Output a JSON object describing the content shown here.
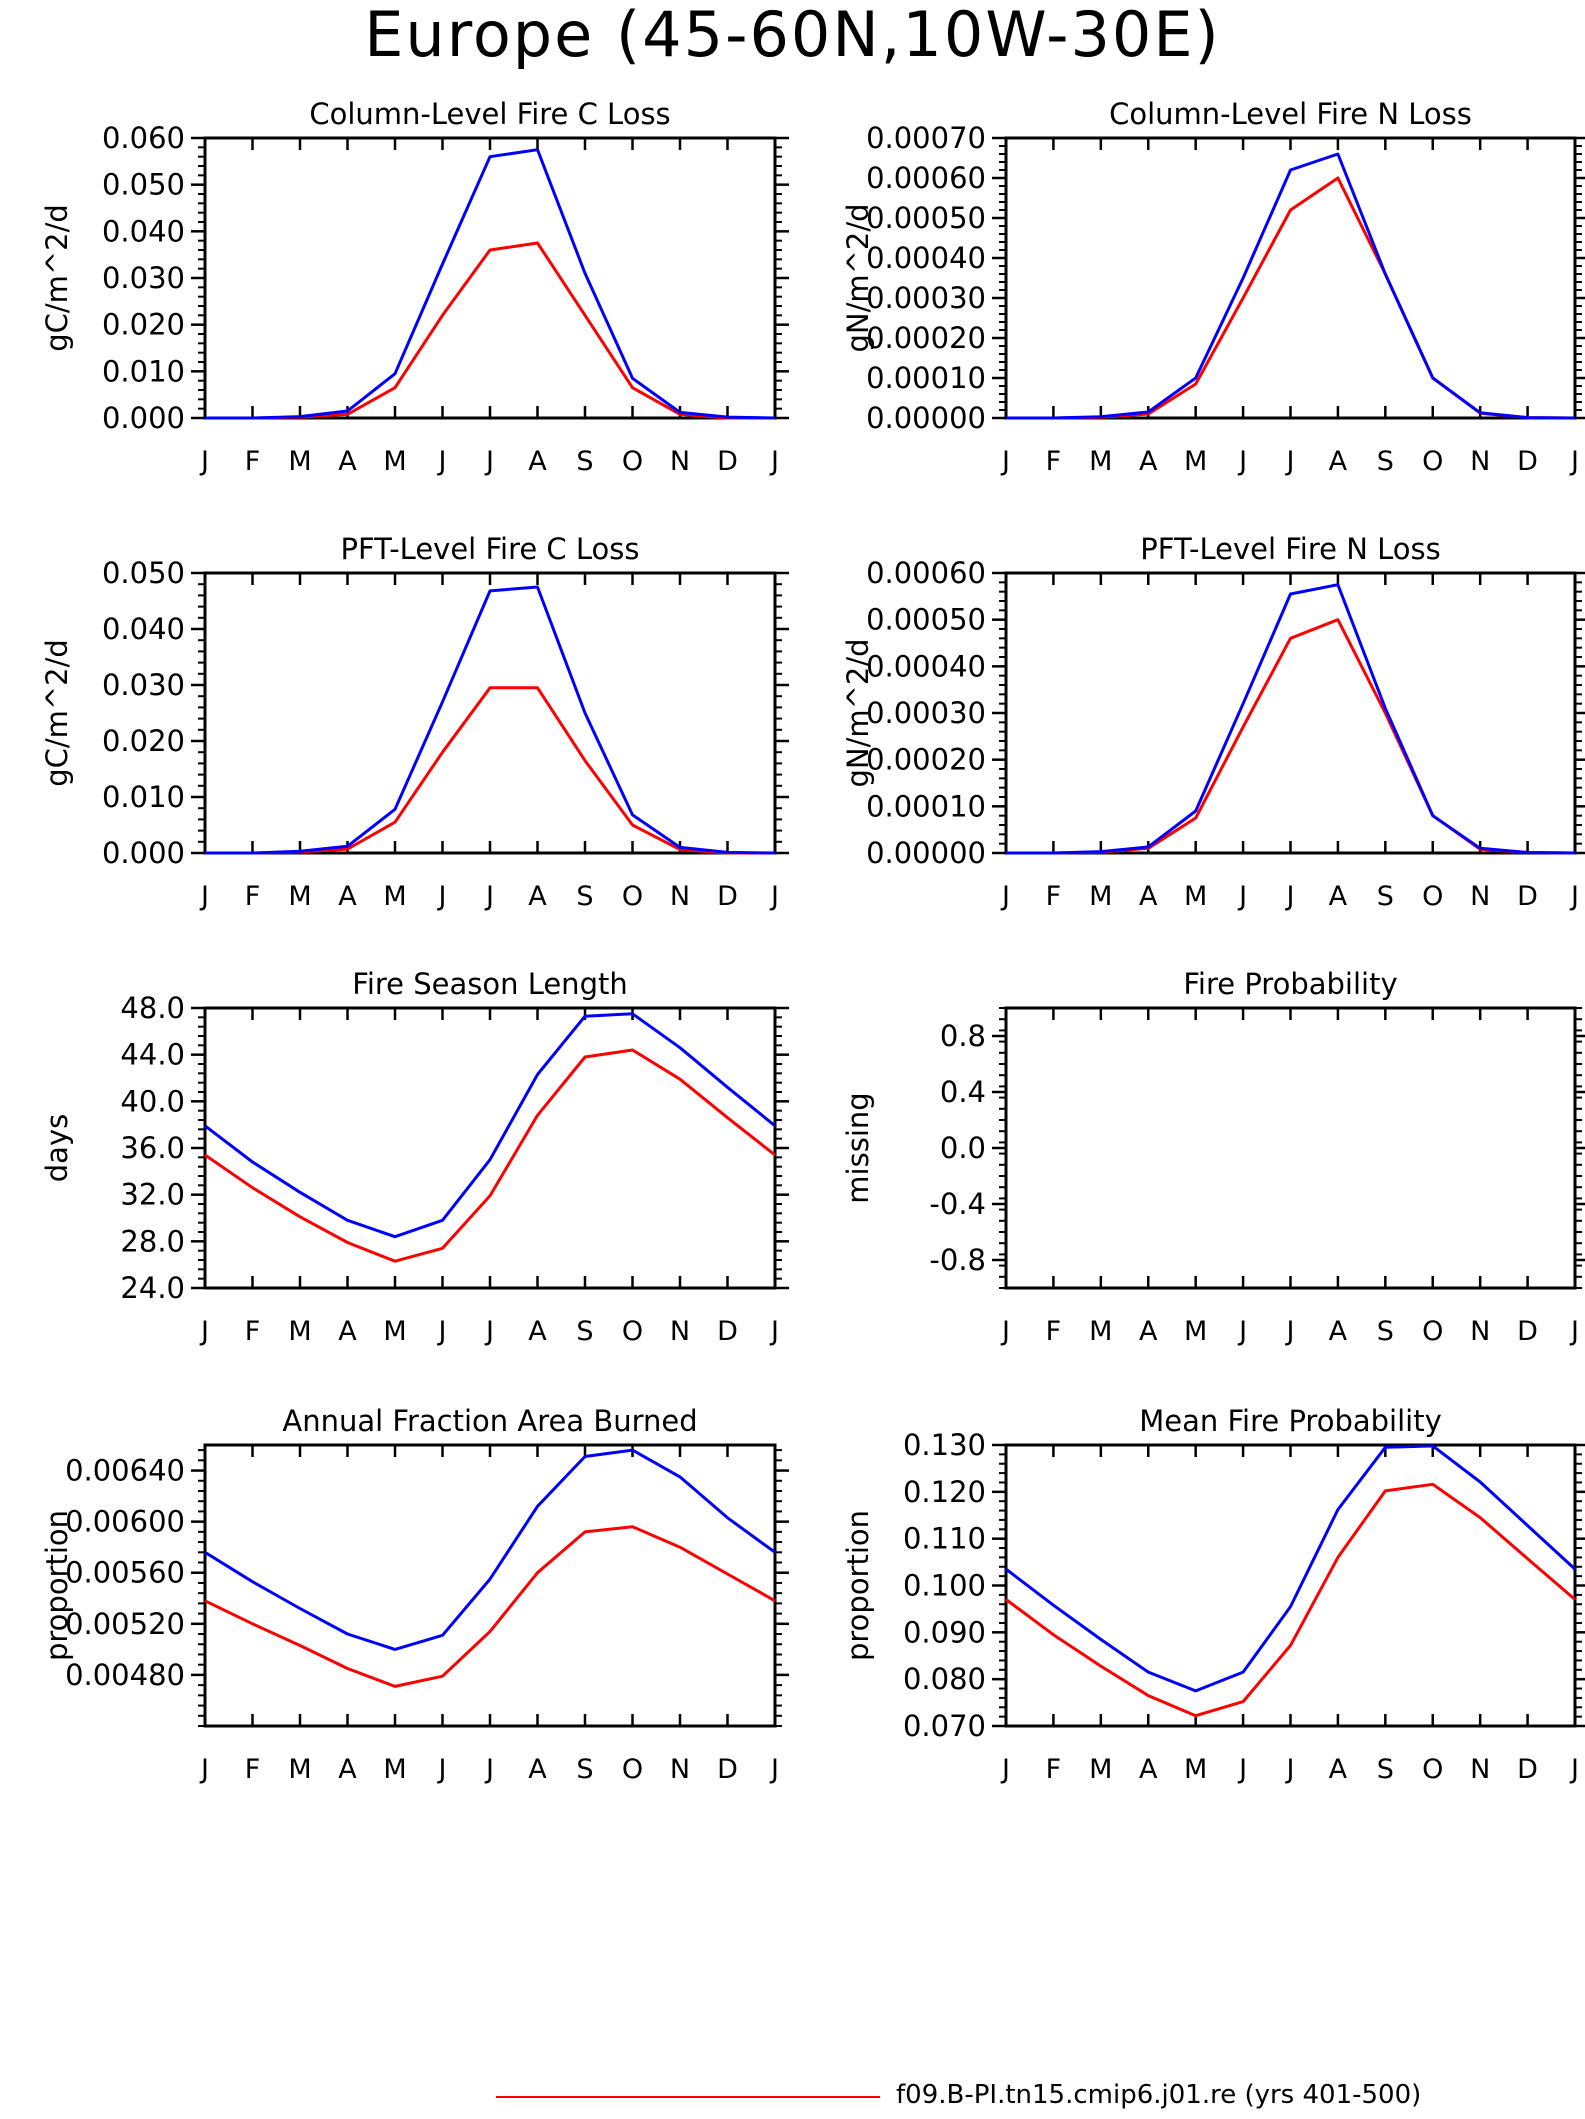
{
  "title": "Europe (45-60N,10W-30E)",
  "legend": {
    "label": "f09.B-PI.tn15.cmip6.j01.re (yrs 401-500)",
    "color": "#ff0000"
  },
  "colors": {
    "series_a": "#ff0000",
    "series_b": "#0000ff",
    "axis": "#000000"
  },
  "chart_data": [
    {
      "type": "line",
      "title": "Column-Level Fire C Loss",
      "ylabel": "gC/m^2/d",
      "categories": [
        "J",
        "F",
        "M",
        "A",
        "M",
        "J",
        "J",
        "A",
        "S",
        "O",
        "N",
        "D",
        "J"
      ],
      "ylim": [
        0,
        0.06
      ],
      "yticks": [
        "0.000",
        "0.010",
        "0.020",
        "0.030",
        "0.040",
        "0.050",
        "0.060"
      ],
      "series": [
        {
          "color": "#ff0000",
          "values": [
            0,
            0,
            0.0002,
            0.0008,
            0.0065,
            0.022,
            0.036,
            0.0375,
            0.022,
            0.0065,
            0.0008,
            0,
            0
          ]
        },
        {
          "color": "#0000ff",
          "values": [
            0,
            0,
            0.0003,
            0.0015,
            0.0095,
            0.033,
            0.056,
            0.0575,
            0.031,
            0.0085,
            0.0012,
            0.0002,
            0
          ]
        }
      ]
    },
    {
      "type": "line",
      "title": "Column-Level Fire N Loss",
      "ylabel": "gN/m^2/d",
      "categories": [
        "J",
        "F",
        "M",
        "A",
        "M",
        "J",
        "J",
        "A",
        "S",
        "O",
        "N",
        "D",
        "J"
      ],
      "ylim": [
        0,
        0.0007
      ],
      "yticks": [
        "0.00000",
        "0.00010",
        "0.00020",
        "0.00030",
        "0.00040",
        "0.00050",
        "0.00060",
        "0.00070"
      ],
      "series": [
        {
          "color": "#ff0000",
          "values": [
            0,
            0,
            2e-06,
            1e-05,
            8.5e-05,
            0.0003,
            0.00052,
            0.0006,
            0.00036,
            0.0001,
            1.2e-05,
            1e-06,
            0
          ]
        },
        {
          "color": "#0000ff",
          "values": [
            0,
            0,
            3e-06,
            1.5e-05,
            0.0001,
            0.00035,
            0.00062,
            0.00066,
            0.00036,
            0.0001,
            1.3e-05,
            1e-06,
            0
          ]
        }
      ]
    },
    {
      "type": "line",
      "title": "PFT-Level Fire C Loss",
      "ylabel": "gC/m^2/d",
      "categories": [
        "J",
        "F",
        "M",
        "A",
        "M",
        "J",
        "J",
        "A",
        "S",
        "O",
        "N",
        "D",
        "J"
      ],
      "ylim": [
        0,
        0.05
      ],
      "yticks": [
        "0.000",
        "0.010",
        "0.020",
        "0.030",
        "0.040",
        "0.050"
      ],
      "series": [
        {
          "color": "#ff0000",
          "values": [
            0,
            0,
            0.0002,
            0.0007,
            0.0055,
            0.018,
            0.0295,
            0.0295,
            0.0165,
            0.005,
            0.0006,
            0,
            0
          ]
        },
        {
          "color": "#0000ff",
          "values": [
            0,
            0,
            0.0003,
            0.0012,
            0.0078,
            0.027,
            0.0468,
            0.0475,
            0.025,
            0.0068,
            0.001,
            0.0001,
            0
          ]
        }
      ]
    },
    {
      "type": "line",
      "title": "PFT-Level Fire N Loss",
      "ylabel": "gN/m^2/d",
      "categories": [
        "J",
        "F",
        "M",
        "A",
        "M",
        "J",
        "J",
        "A",
        "S",
        "O",
        "N",
        "D",
        "J"
      ],
      "ylim": [
        0,
        0.0006
      ],
      "yticks": [
        "0.00000",
        "0.00010",
        "0.00020",
        "0.00030",
        "0.00040",
        "0.00050",
        "0.00060"
      ],
      "series": [
        {
          "color": "#ff0000",
          "values": [
            0,
            0,
            2e-06,
            1e-05,
            7.5e-05,
            0.00027,
            0.00046,
            0.0005,
            0.0003,
            8e-05,
            8e-06,
            1e-06,
            0
          ]
        },
        {
          "color": "#0000ff",
          "values": [
            0,
            0,
            3e-06,
            1.3e-05,
            9e-05,
            0.00032,
            0.000555,
            0.000575,
            0.00031,
            8e-05,
            1e-05,
            1e-06,
            0
          ]
        }
      ]
    },
    {
      "type": "line",
      "title": "Fire Season Length",
      "ylabel": "days",
      "categories": [
        "J",
        "F",
        "M",
        "A",
        "M",
        "J",
        "J",
        "A",
        "S",
        "O",
        "N",
        "D",
        "J"
      ],
      "ylim": [
        24,
        48
      ],
      "yticks": [
        "24.0",
        "28.0",
        "32.0",
        "36.0",
        "40.0",
        "44.0",
        "48.0"
      ],
      "series": [
        {
          "color": "#ff0000",
          "values": [
            35.4,
            32.6,
            30.1,
            27.9,
            26.3,
            27.4,
            31.9,
            38.8,
            43.8,
            44.4,
            41.9,
            38.6,
            35.4
          ]
        },
        {
          "color": "#0000ff",
          "values": [
            37.9,
            34.8,
            32.2,
            29.8,
            28.4,
            29.8,
            35.0,
            42.3,
            47.3,
            47.5,
            44.6,
            41.2,
            37.9
          ]
        }
      ]
    },
    {
      "type": "line",
      "title": "Fire Probability",
      "ylabel": "missing",
      "categories": [
        "J",
        "F",
        "M",
        "A",
        "M",
        "J",
        "J",
        "A",
        "S",
        "O",
        "N",
        "D",
        "J"
      ],
      "ylim": [
        -1,
        1
      ],
      "yticks": [
        "-0.8",
        "-0.4",
        "0.0",
        "0.4",
        "0.8"
      ],
      "series": []
    },
    {
      "type": "line",
      "title": "Annual Fraction Area Burned",
      "ylabel": "proportion",
      "categories": [
        "J",
        "F",
        "M",
        "A",
        "M",
        "J",
        "J",
        "A",
        "S",
        "O",
        "N",
        "D",
        "J"
      ],
      "ylim": [
        0.0044,
        0.0066
      ],
      "yticks": [
        "0.00480",
        "0.00520",
        "0.00560",
        "0.00600",
        "0.00640"
      ],
      "series": [
        {
          "color": "#ff0000",
          "values": [
            0.00538,
            0.0052,
            0.00503,
            0.00485,
            0.00471,
            0.00479,
            0.00514,
            0.0056,
            0.00592,
            0.00596,
            0.0058,
            0.00559,
            0.00538
          ]
        },
        {
          "color": "#0000ff",
          "values": [
            0.00576,
            0.00553,
            0.00532,
            0.00512,
            0.005,
            0.00511,
            0.00555,
            0.00612,
            0.00651,
            0.00656,
            0.00635,
            0.00603,
            0.00576
          ]
        }
      ]
    },
    {
      "type": "line",
      "title": "Mean Fire Probability",
      "ylabel": "proportion",
      "categories": [
        "J",
        "F",
        "M",
        "A",
        "M",
        "J",
        "J",
        "A",
        "S",
        "O",
        "N",
        "D",
        "J"
      ],
      "ylim": [
        0.07,
        0.13
      ],
      "yticks": [
        "0.070",
        "0.080",
        "0.090",
        "0.100",
        "0.110",
        "0.120",
        "0.130"
      ],
      "series": [
        {
          "color": "#ff0000",
          "values": [
            0.097,
            0.0895,
            0.0828,
            0.0765,
            0.0722,
            0.0752,
            0.0872,
            0.106,
            0.1202,
            0.1216,
            0.1145,
            0.1057,
            0.097
          ]
        },
        {
          "color": "#0000ff",
          "values": [
            0.1035,
            0.0958,
            0.0885,
            0.0815,
            0.0775,
            0.0815,
            0.0955,
            0.1162,
            0.1295,
            0.1298,
            0.1221,
            0.1128,
            0.1035
          ]
        }
      ]
    }
  ]
}
